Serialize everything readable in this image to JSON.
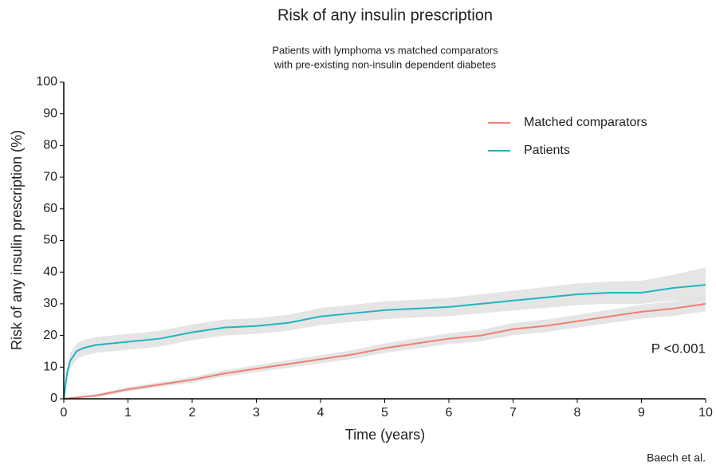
{
  "chart_data": {
    "type": "line",
    "title": "Risk of any insulin prescription",
    "subtitle": [
      "Patients with lymphoma vs matched comparators",
      "with pre-existing non-insulin dependent diabetes"
    ],
    "x_label": "Time (years)",
    "y_label": "Risk of any insulin prescription (%)",
    "annotation": "P <0.001",
    "caption": "Baech et al.",
    "xlim": [
      0,
      10
    ],
    "xticks": [
      0,
      1,
      2,
      3,
      4,
      5,
      6,
      7,
      8,
      9,
      10
    ],
    "ylim": [
      0,
      100
    ],
    "yticks": [
      0,
      10,
      20,
      30,
      40,
      50,
      60,
      70,
      80,
      90,
      100
    ],
    "legend": "top-right",
    "band_color": "#e0e0e0",
    "series": [
      {
        "name": "Matched comparators",
        "color": "#f07f72",
        "x": [
          0,
          0.5,
          1,
          1.5,
          2,
          2.5,
          3,
          3.5,
          4,
          4.5,
          5,
          5.5,
          6,
          6.5,
          7,
          7.5,
          8,
          8.5,
          9,
          9.5,
          10
        ],
        "values": [
          0,
          1,
          3,
          4.5,
          6,
          8,
          9.5,
          11,
          12.5,
          14,
          16,
          17.5,
          19,
          20,
          22,
          23,
          24.5,
          26,
          27.5,
          28.5,
          30
        ],
        "lower": [
          0,
          0.5,
          2.3,
          3.7,
          5.1,
          7,
          8.4,
          9.8,
          11.2,
          12.6,
          14.5,
          15.9,
          17.3,
          18.2,
          20.1,
          21,
          22.5,
          23.9,
          25.3,
          26.2,
          27.6
        ],
        "upper": [
          0,
          1.5,
          3.7,
          5.3,
          6.9,
          9,
          10.6,
          12.2,
          13.8,
          15.4,
          17.5,
          19.1,
          20.7,
          21.8,
          23.9,
          25,
          26.5,
          28.1,
          29.7,
          30.8,
          32.4
        ]
      },
      {
        "name": "Patients",
        "color": "#1fb5c0",
        "x": [
          0,
          0.05,
          0.1,
          0.2,
          0.3,
          0.5,
          1,
          1.5,
          2,
          2.5,
          3,
          3.5,
          4,
          4.5,
          5,
          5.5,
          6,
          6.5,
          7,
          7.5,
          8,
          8.5,
          9,
          9.5,
          10
        ],
        "values": [
          0,
          8,
          12,
          15,
          16,
          17,
          18,
          19,
          21,
          22.5,
          23,
          24,
          26,
          27,
          28,
          28.5,
          29,
          30,
          31,
          32,
          33,
          33.5,
          33.5,
          35,
          36
        ],
        "lower": [
          0,
          6,
          9.5,
          12.5,
          13.5,
          14.5,
          15.5,
          16.5,
          18.5,
          20,
          20.5,
          21.5,
          23.3,
          24.3,
          25.2,
          25.7,
          26.1,
          27,
          27.9,
          28.7,
          29.6,
          30,
          30,
          31,
          31.5
        ],
        "upper": [
          0,
          10,
          14.5,
          17.5,
          18.5,
          19.5,
          20.5,
          21.5,
          23.5,
          25,
          25.5,
          26.5,
          28.7,
          29.7,
          30.8,
          31.3,
          31.9,
          33,
          34.1,
          35.3,
          36.4,
          37,
          37.3,
          39.2,
          41.5
        ]
      }
    ]
  }
}
